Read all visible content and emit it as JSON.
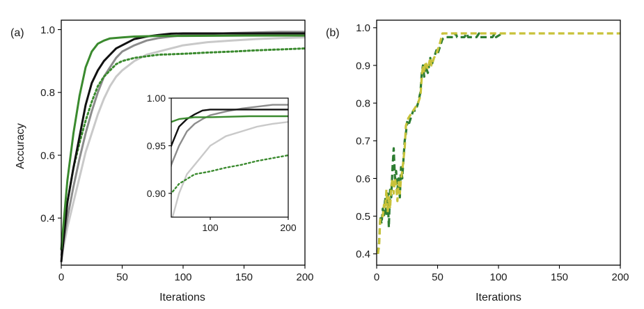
{
  "chart_data": [
    {
      "type": "line",
      "panel_label": "(a)",
      "xlabel": "Iterations",
      "ylabel": "Accuracy",
      "xlim": [
        0,
        200
      ],
      "ylim": [
        0.25,
        1.03
      ],
      "xticks": [
        0,
        50,
        100,
        150,
        200
      ],
      "yticks": [
        0.4,
        0.6,
        0.8,
        1.0
      ],
      "xtick_labels": [
        "0",
        "50",
        "100",
        "150",
        "200"
      ],
      "ytick_labels": [
        "0.4",
        "0.6",
        "0.8",
        "1.0"
      ],
      "grid": false,
      "series": [
        {
          "color": "#c9c9c9",
          "dash": "solid",
          "points": [
            [
              0,
              0.27
            ],
            [
              5,
              0.37
            ],
            [
              10,
              0.45
            ],
            [
              15,
              0.53
            ],
            [
              20,
              0.61
            ],
            [
              25,
              0.67
            ],
            [
              30,
              0.73
            ],
            [
              35,
              0.78
            ],
            [
              40,
              0.82
            ],
            [
              45,
              0.85
            ],
            [
              50,
              0.87
            ],
            [
              60,
              0.9
            ],
            [
              70,
              0.92
            ],
            [
              80,
              0.93
            ],
            [
              90,
              0.94
            ],
            [
              100,
              0.95
            ],
            [
              120,
              0.96
            ],
            [
              140,
              0.965
            ],
            [
              160,
              0.97
            ],
            [
              180,
              0.973
            ],
            [
              200,
              0.975
            ]
          ]
        },
        {
          "color": "#8c8c8c",
          "dash": "solid",
          "points": [
            [
              0,
              0.28
            ],
            [
              5,
              0.4
            ],
            [
              10,
              0.5
            ],
            [
              15,
              0.59
            ],
            [
              20,
              0.67
            ],
            [
              25,
              0.74
            ],
            [
              30,
              0.8
            ],
            [
              35,
              0.85
            ],
            [
              40,
              0.88
            ],
            [
              45,
              0.91
            ],
            [
              50,
              0.93
            ],
            [
              60,
              0.95
            ],
            [
              70,
              0.965
            ],
            [
              80,
              0.973
            ],
            [
              90,
              0.978
            ],
            [
              100,
              0.982
            ],
            [
              120,
              0.986
            ],
            [
              140,
              0.989
            ],
            [
              160,
              0.991
            ],
            [
              180,
              0.993
            ],
            [
              200,
              0.993
            ]
          ]
        },
        {
          "color": "#3a8a2e",
          "dash": "dot",
          "points": [
            [
              0,
              0.3
            ],
            [
              5,
              0.45
            ],
            [
              10,
              0.56
            ],
            [
              15,
              0.64
            ],
            [
              20,
              0.71
            ],
            [
              25,
              0.77
            ],
            [
              30,
              0.82
            ],
            [
              35,
              0.85
            ],
            [
              40,
              0.87
            ],
            [
              45,
              0.89
            ],
            [
              50,
              0.9
            ],
            [
              60,
              0.91
            ],
            [
              70,
              0.915
            ],
            [
              80,
              0.92
            ],
            [
              100,
              0.923
            ],
            [
              120,
              0.927
            ],
            [
              140,
              0.93
            ],
            [
              160,
              0.934
            ],
            [
              180,
              0.937
            ],
            [
              200,
              0.94
            ]
          ]
        },
        {
          "color": "#111111",
          "dash": "solid",
          "points": [
            [
              0,
              0.26
            ],
            [
              5,
              0.45
            ],
            [
              10,
              0.56
            ],
            [
              15,
              0.66
            ],
            [
              20,
              0.76
            ],
            [
              25,
              0.83
            ],
            [
              30,
              0.87
            ],
            [
              35,
              0.9
            ],
            [
              40,
              0.92
            ],
            [
              45,
              0.94
            ],
            [
              50,
              0.95
            ],
            [
              60,
              0.97
            ],
            [
              70,
              0.978
            ],
            [
              80,
              0.983
            ],
            [
              90,
              0.987
            ],
            [
              100,
              0.988
            ],
            [
              150,
              0.988
            ],
            [
              200,
              0.988
            ]
          ]
        },
        {
          "color": "#3a8a2e",
          "dash": "solid",
          "points": [
            [
              0,
              0.3
            ],
            [
              5,
              0.52
            ],
            [
              10,
              0.67
            ],
            [
              15,
              0.79
            ],
            [
              20,
              0.88
            ],
            [
              25,
              0.93
            ],
            [
              30,
              0.955
            ],
            [
              35,
              0.965
            ],
            [
              40,
              0.972
            ],
            [
              50,
              0.975
            ],
            [
              60,
              0.978
            ],
            [
              80,
              0.98
            ],
            [
              100,
              0.98
            ],
            [
              150,
              0.981
            ],
            [
              200,
              0.981
            ]
          ]
        }
      ],
      "inset": {
        "xlim": [
          50,
          200
        ],
        "ylim": [
          0.875,
          1.0
        ],
        "xticks": [
          100,
          200
        ],
        "yticks": [
          0.9,
          0.95,
          1.0
        ],
        "xtick_labels": [
          "100",
          "200"
        ],
        "ytick_labels": [
          "0.90",
          "0.95",
          "1.00"
        ]
      }
    },
    {
      "type": "line",
      "panel_label": "(b)",
      "xlabel": "Iterations",
      "ylabel": "",
      "xlim": [
        0,
        200
      ],
      "ylim": [
        0.37,
        1.02
      ],
      "xticks": [
        0,
        50,
        100,
        150,
        200
      ],
      "yticks": [
        0.4,
        0.5,
        0.6,
        0.7,
        0.8,
        0.9,
        1.0
      ],
      "xtick_labels": [
        "0",
        "50",
        "100",
        "150",
        "200"
      ],
      "ytick_labels": [
        "0.4",
        "0.5",
        "0.6",
        "0.7",
        "0.8",
        "0.9",
        "1.0"
      ],
      "grid": false,
      "series": [
        {
          "color": "#2e7d32",
          "dash": "dash",
          "points": [
            [
              1,
              0.4
            ],
            [
              2,
              0.43
            ],
            [
              3,
              0.5
            ],
            [
              4,
              0.48
            ],
            [
              5,
              0.52
            ],
            [
              6,
              0.5
            ],
            [
              7,
              0.55
            ],
            [
              8,
              0.5
            ],
            [
              9,
              0.56
            ],
            [
              10,
              0.47
            ],
            [
              11,
              0.57
            ],
            [
              12,
              0.55
            ],
            [
              13,
              0.63
            ],
            [
              14,
              0.68
            ],
            [
              15,
              0.6
            ],
            [
              16,
              0.62
            ],
            [
              17,
              0.57
            ],
            [
              18,
              0.6
            ],
            [
              19,
              0.55
            ],
            [
              20,
              0.63
            ],
            [
              21,
              0.6
            ],
            [
              22,
              0.65
            ],
            [
              23,
              0.7
            ],
            [
              24,
              0.72
            ],
            [
              25,
              0.75
            ],
            [
              26,
              0.74
            ],
            [
              28,
              0.76
            ],
            [
              30,
              0.78
            ],
            [
              32,
              0.78
            ],
            [
              34,
              0.8
            ],
            [
              36,
              0.83
            ],
            [
              37,
              0.88
            ],
            [
              38,
              0.9
            ],
            [
              39,
              0.87
            ],
            [
              40,
              0.9
            ],
            [
              42,
              0.88
            ],
            [
              44,
              0.92
            ],
            [
              45,
              0.9
            ],
            [
              47,
              0.92
            ],
            [
              49,
              0.94
            ],
            [
              50,
              0.93
            ],
            [
              52,
              0.95
            ],
            [
              54,
              0.97
            ],
            [
              56,
              0.975
            ],
            [
              60,
              0.975
            ],
            [
              64,
              0.975
            ],
            [
              65,
              0.985
            ],
            [
              66,
              0.975
            ],
            [
              72,
              0.975
            ],
            [
              74,
              0.985
            ],
            [
              75,
              0.975
            ],
            [
              82,
              0.975
            ],
            [
              84,
              0.985
            ],
            [
              85,
              0.975
            ],
            [
              95,
              0.975
            ],
            [
              97,
              0.985
            ],
            [
              98,
              0.975
            ],
            [
              103,
              0.985
            ]
          ]
        },
        {
          "color": "#c8c23a",
          "dash": "dash",
          "points": [
            [
              1,
              0.4
            ],
            [
              2,
              0.42
            ],
            [
              3,
              0.5
            ],
            [
              5,
              0.5
            ],
            [
              6,
              0.53
            ],
            [
              7,
              0.52
            ],
            [
              8,
              0.57
            ],
            [
              9,
              0.51
            ],
            [
              10,
              0.55
            ],
            [
              11,
              0.52
            ],
            [
              12,
              0.58
            ],
            [
              13,
              0.6
            ],
            [
              14,
              0.56
            ],
            [
              15,
              0.6
            ],
            [
              16,
              0.58
            ],
            [
              17,
              0.54
            ],
            [
              18,
              0.59
            ],
            [
              19,
              0.56
            ],
            [
              20,
              0.6
            ],
            [
              21,
              0.62
            ],
            [
              22,
              0.65
            ],
            [
              23,
              0.68
            ],
            [
              24,
              0.74
            ],
            [
              25,
              0.75
            ],
            [
              26,
              0.76
            ],
            [
              28,
              0.77
            ],
            [
              30,
              0.78
            ],
            [
              32,
              0.79
            ],
            [
              34,
              0.8
            ],
            [
              36,
              0.82
            ],
            [
              37,
              0.87
            ],
            [
              38,
              0.9
            ],
            [
              39,
              0.88
            ],
            [
              40,
              0.91
            ],
            [
              42,
              0.89
            ],
            [
              44,
              0.92
            ],
            [
              45,
              0.9
            ],
            [
              47,
              0.92
            ],
            [
              49,
              0.93
            ],
            [
              50,
              0.94
            ],
            [
              52,
              0.96
            ],
            [
              54,
              0.985
            ],
            [
              56,
              0.985
            ],
            [
              60,
              0.985
            ],
            [
              100,
              0.985
            ],
            [
              150,
              0.985
            ],
            [
              200,
              0.985
            ]
          ]
        }
      ]
    }
  ]
}
